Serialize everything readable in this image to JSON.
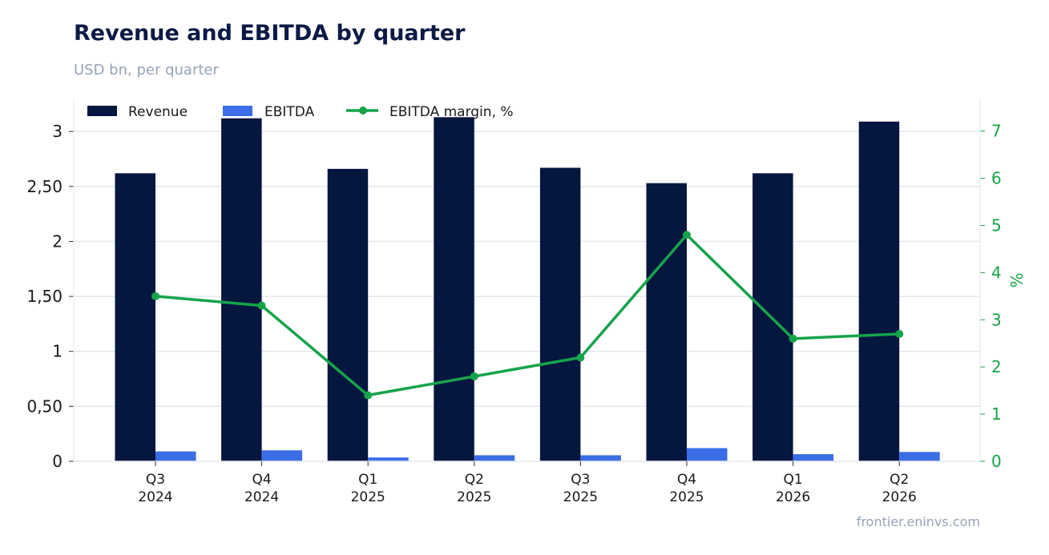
{
  "header": {
    "title": "Revenue and EBITDA by quarter",
    "subtitle": "USD bn, per quarter"
  },
  "footer": {
    "source": "frontier.eninvs.com"
  },
  "colors": {
    "revenue": "#05163f",
    "ebitda": "#3b6ee6",
    "margin": "#16a34a",
    "grid": "#e3e7ee",
    "text": "#1a1a1a"
  },
  "chart_data": {
    "type": "bar",
    "categories": [
      [
        "Q3",
        "2024"
      ],
      [
        "Q4",
        "2024"
      ],
      [
        "Q1",
        "2025"
      ],
      [
        "Q2",
        "2025"
      ],
      [
        "Q3",
        "2025"
      ],
      [
        "Q4",
        "2025"
      ],
      [
        "Q1",
        "2026"
      ],
      [
        "Q2",
        "2026"
      ]
    ],
    "series": [
      {
        "name": "Revenue",
        "type": "bar",
        "axis": "left",
        "values": [
          2.62,
          3.12,
          2.66,
          3.13,
          2.67,
          2.53,
          2.62,
          3.09
        ]
      },
      {
        "name": "EBITDA",
        "type": "bar",
        "axis": "left",
        "values": [
          0.09,
          0.1,
          0.035,
          0.055,
          0.055,
          0.12,
          0.065,
          0.085
        ]
      },
      {
        "name": "EBITDA margin, %",
        "type": "line",
        "axis": "right",
        "values": [
          3.5,
          3.3,
          1.4,
          1.8,
          2.2,
          4.8,
          2.6,
          2.7
        ]
      }
    ],
    "y_left": {
      "ylim": [
        0,
        3.3
      ],
      "ticks": [
        0,
        0.5,
        1,
        1.5,
        2,
        2.5,
        3
      ],
      "tick_labels": [
        "0",
        "0,50",
        "1",
        "1,50",
        "2",
        "2,50",
        "3"
      ]
    },
    "y_right": {
      "label": "%",
      "ylim": [
        0,
        7.69
      ],
      "ticks": [
        0,
        1,
        2,
        3,
        4,
        5,
        6,
        7
      ],
      "tick_labels": [
        "0",
        "1",
        "2",
        "3",
        "4",
        "5",
        "6",
        "7"
      ]
    },
    "grid": true,
    "legend": "top-left"
  }
}
